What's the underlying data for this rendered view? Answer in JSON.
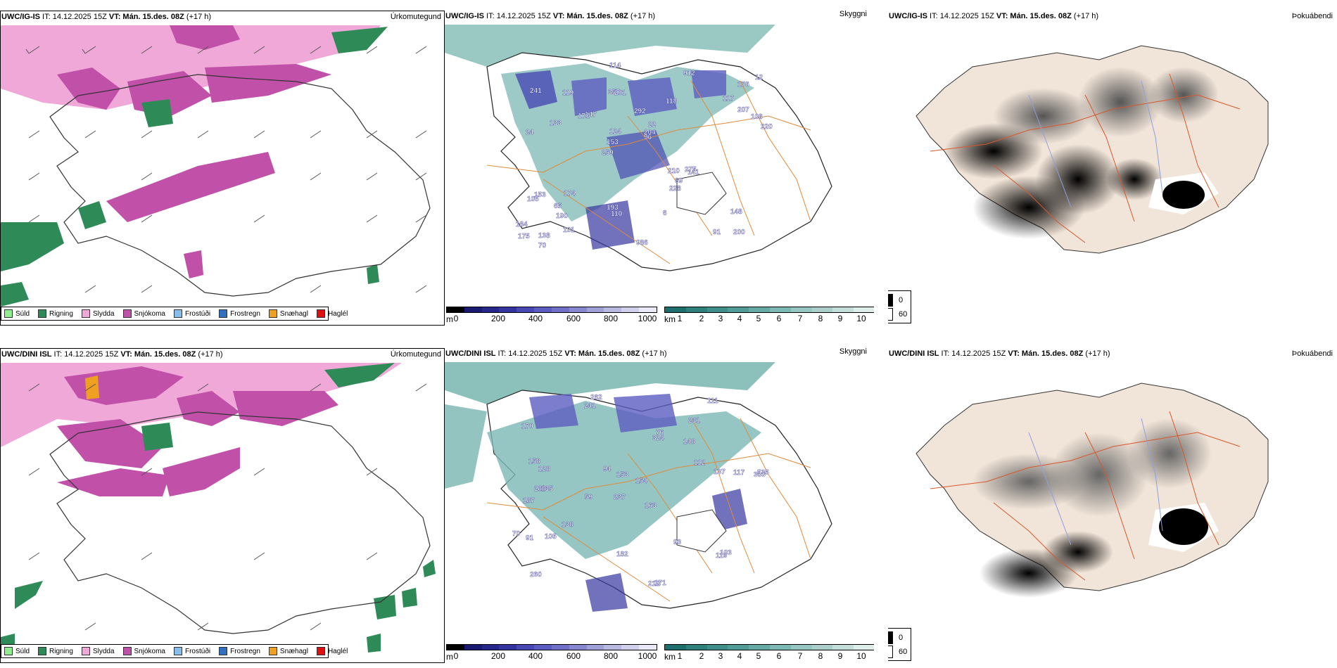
{
  "panels": {
    "precip_top": {
      "header_model": "UWC/IG-IS",
      "header_it": " IT: 14.12.2025 15Z ",
      "header_vt_label": "VT: Mán. 15.des. 08Z",
      "header_lead": " (+17 h)",
      "header_right": "Úrkomutegund"
    },
    "precip_bottom": {
      "header_model": "UWC/DINI ISL",
      "header_it": " IT: 14.12.2025 15Z ",
      "header_vt_label": "VT: Mán. 15.des. 08Z",
      "header_lead": " (+17 h)",
      "header_right": "Úrkomutegund"
    },
    "cloud_top": {
      "header_model": "UWC/IG-IS",
      "header_it": " IT: 14.12.2025 15Z ",
      "header_vt_label": "VT: Mán. 15.des. 08Z",
      "header_lead": " (+17 h)",
      "header_right": "Skyggni",
      "labels": [
        "200",
        "24",
        "176",
        "259",
        "118",
        "138",
        "357",
        "292",
        "153",
        "147",
        "184",
        "190",
        "201",
        "22",
        "141",
        "241",
        "114",
        "220",
        "210",
        "207",
        "153",
        "193",
        "124",
        "119",
        "912",
        "174",
        "91",
        "148",
        "275",
        "986",
        "171",
        "133",
        "228",
        "101",
        "108",
        "204",
        "175",
        "110",
        "96",
        "105",
        "117",
        "12",
        "69",
        "6",
        "65",
        "70"
      ]
    },
    "cloud_bottom": {
      "header_model": "UWC/DINI ISL",
      "header_it": " IT: 14.12.2025 15Z ",
      "header_vt_label": "VT: Mán. 15.des. 08Z",
      "header_lead": " (+17 h)",
      "header_right": "Skyggni",
      "labels": [
        "262",
        "231",
        "303",
        "237",
        "163",
        "135",
        "170",
        "148",
        "187",
        "324",
        "154",
        "260",
        "241",
        "59",
        "212",
        "171",
        "182",
        "111",
        "112",
        "138",
        "128",
        "288",
        "535",
        "117",
        "70",
        "158",
        "153",
        "137",
        "103",
        "91",
        "119",
        "76",
        "105",
        "94",
        "93"
      ]
    },
    "fog_top": {
      "header_model": "UWC/IG-IS",
      "header_it": " IT: 14.12.2025 15Z ",
      "header_vt_label": "VT: Mán. 15.des. 08Z",
      "header_lead": " (+17 h)",
      "header_right": "Þokuábendi"
    },
    "fog_bottom": {
      "header_model": "UWC/DINI ISL",
      "header_it": " IT: 14.12.2025 15Z ",
      "header_vt_label": "VT: Mán. 15.des. 08Z",
      "header_lead": " (+17 h)",
      "header_right": "Þokuábendi"
    }
  },
  "precip_legend": [
    {
      "label": "Súld",
      "color": "#90ee90"
    },
    {
      "label": "Rigning",
      "color": "#2e8b57"
    },
    {
      "label": "Slydda",
      "color": "#f0a8d8"
    },
    {
      "label": "Snjókoma",
      "color": "#c050a8"
    },
    {
      "label": "Frostúði",
      "color": "#87bde8"
    },
    {
      "label": "Frostregn",
      "color": "#3070c0"
    },
    {
      "label": "Snæhagl",
      "color": "#f0a020"
    },
    {
      "label": "Haglél",
      "color": "#e01010"
    }
  ],
  "cloudbase_scale": {
    "unit": "m",
    "ticks": [
      "0",
      "200",
      "400",
      "600",
      "800",
      "1000"
    ],
    "colors": [
      "#000000",
      "#1a1a70",
      "#26268c",
      "#3434a0",
      "#4848b4",
      "#5c5cc0",
      "#7070c8",
      "#8888d0",
      "#a0a0d8",
      "#b8b8e0",
      "#d0d0ec",
      "#e8e8f6"
    ]
  },
  "visibility_scale": {
    "unit": "km",
    "ticks": [
      "1",
      "2",
      "3",
      "4",
      "5",
      "6",
      "7",
      "8",
      "9",
      "10"
    ],
    "colors": [
      "#1f6e6e",
      "#2f7f7c",
      "#3f8e8a",
      "#529c98",
      "#66aaa6",
      "#7cb8b4",
      "#94c6c2",
      "#accfcc",
      "#c4dedc",
      "#deecea"
    ]
  },
  "fog_legend": {
    "items": [
      {
        "label": "0",
        "color": "#000000"
      },
      {
        "label": "60",
        "color": "#ffffff"
      }
    ]
  }
}
